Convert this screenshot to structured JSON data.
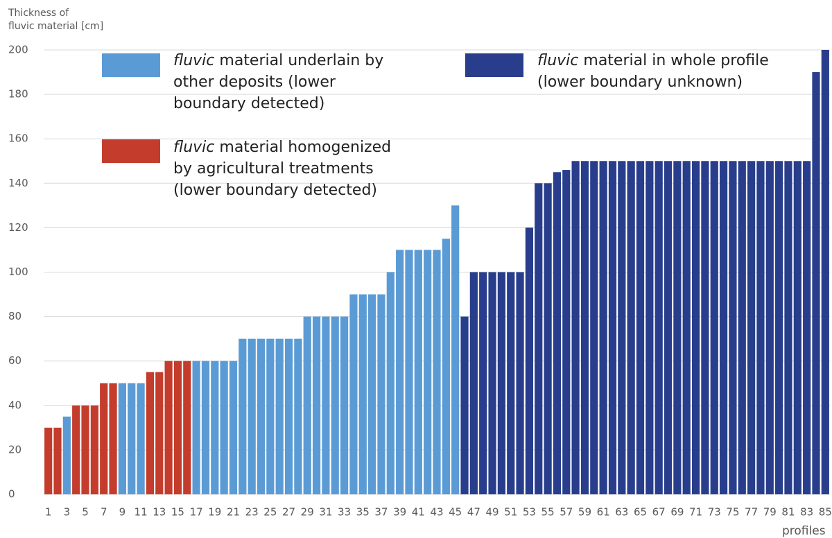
{
  "chart_data": {
    "type": "bar",
    "y_label": "Thickness of\nfluvic material [cm]",
    "x_label": "profiles",
    "categories": [
      1,
      null,
      3,
      null,
      5,
      null,
      7,
      null,
      9,
      null,
      11,
      null,
      13,
      null,
      15,
      null,
      17,
      null,
      19,
      null,
      21,
      null,
      23,
      null,
      25,
      null,
      27,
      null,
      29,
      null,
      31,
      null,
      33,
      null,
      35,
      null,
      37,
      null,
      39,
      null,
      41,
      null,
      43,
      null,
      45,
      null,
      47,
      null,
      49,
      null,
      51,
      null,
      53,
      null,
      55,
      null,
      57,
      null,
      59,
      null,
      61,
      null,
      63,
      null,
      65,
      null,
      67,
      null,
      69,
      null,
      71,
      null,
      73,
      null,
      75,
      null,
      77,
      null,
      79,
      null,
      81,
      null,
      83,
      null,
      85
    ],
    "series": [
      {
        "name": "fluvic material underlain by other deposits (lower boundary detected)",
        "color": "#5b9bd5",
        "values": [
          null,
          null,
          35,
          null,
          null,
          null,
          null,
          null,
          50,
          50,
          50,
          null,
          null,
          null,
          null,
          null,
          60,
          60,
          60,
          60,
          60,
          70,
          70,
          70,
          70,
          70,
          70,
          70,
          80,
          80,
          80,
          80,
          80,
          90,
          90,
          90,
          90,
          100,
          110,
          110,
          110,
          110,
          110,
          115,
          130,
          null,
          null,
          null,
          null,
          null,
          null,
          null,
          null,
          null,
          null,
          null,
          null,
          null,
          null,
          null,
          null,
          null,
          null,
          null,
          null,
          null,
          null,
          null,
          null,
          null,
          null,
          null,
          null,
          null,
          null,
          null,
          null,
          null,
          null,
          null,
          null,
          null,
          null,
          null,
          null
        ]
      },
      {
        "name": "fluvic material homogenized by agricultural treatments (lower boundary detected)",
        "color": "#c43c2c",
        "values": [
          30,
          30,
          null,
          40,
          40,
          40,
          50,
          50,
          null,
          null,
          null,
          55,
          55,
          60,
          60,
          60,
          null,
          null,
          null,
          null,
          null,
          null,
          null,
          null,
          null,
          null,
          null,
          null,
          null,
          null,
          null,
          null,
          null,
          null,
          null,
          null,
          null,
          null,
          null,
          null,
          null,
          null,
          null,
          null,
          null,
          null,
          null,
          null,
          null,
          null,
          null,
          null,
          null,
          null,
          null,
          null,
          null,
          null,
          null,
          null,
          null,
          null,
          null,
          null,
          null,
          null,
          null,
          null,
          null,
          null,
          null,
          null,
          null,
          null,
          null,
          null,
          null,
          null,
          null,
          null,
          null,
          null,
          null,
          null,
          null
        ]
      },
      {
        "name": "fluvic material in whole profile (lower boundary unknown)",
        "color": "#283e8c",
        "values": [
          null,
          null,
          null,
          null,
          null,
          null,
          null,
          null,
          null,
          null,
          null,
          null,
          null,
          null,
          null,
          null,
          null,
          null,
          null,
          null,
          null,
          null,
          null,
          null,
          null,
          null,
          null,
          null,
          null,
          null,
          null,
          null,
          null,
          null,
          null,
          null,
          null,
          null,
          null,
          null,
          null,
          null,
          null,
          null,
          null,
          80,
          100,
          100,
          100,
          100,
          100,
          100,
          120,
          140,
          140,
          145,
          146,
          150,
          150,
          150,
          150,
          150,
          150,
          150,
          150,
          150,
          150,
          150,
          150,
          150,
          150,
          150,
          150,
          150,
          150,
          150,
          150,
          150,
          150,
          150,
          150,
          150,
          150,
          190,
          200
        ]
      }
    ],
    "ylim": [
      0,
      200
    ],
    "yticks": [
      0,
      20,
      40,
      60,
      80,
      100,
      120,
      140,
      160,
      180,
      200
    ],
    "grid": true
  }
}
